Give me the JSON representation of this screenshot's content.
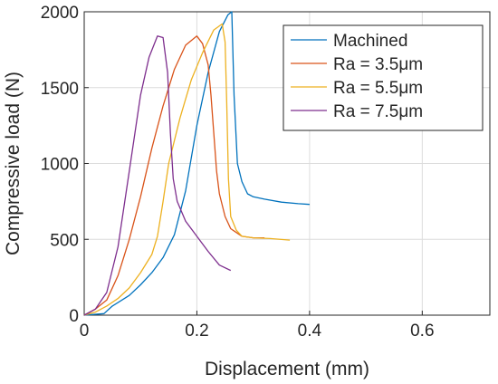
{
  "chart_data": {
    "type": "line",
    "xlabel": "Displacement (mm)",
    "ylabel": "Compressive load (N)",
    "xlim": [
      0,
      0.72
    ],
    "ylim": [
      0,
      2000
    ],
    "xticks": [
      "0",
      "0.2",
      "0.4",
      "0.6"
    ],
    "xtick_values": [
      0,
      0.2,
      0.4,
      0.6
    ],
    "yticks": [
      "0",
      "500",
      "1000",
      "1500",
      "2000"
    ],
    "ytick_values": [
      0,
      500,
      1000,
      1500,
      2000
    ],
    "grid": true,
    "legend_position": "top-right",
    "series": [
      {
        "name": "Machined",
        "color": "#0072BD",
        "points": [
          [
            0,
            0
          ],
          [
            0.035,
            10
          ],
          [
            0.05,
            60
          ],
          [
            0.08,
            130
          ],
          [
            0.1,
            200
          ],
          [
            0.12,
            280
          ],
          [
            0.14,
            380
          ],
          [
            0.16,
            530
          ],
          [
            0.18,
            820
          ],
          [
            0.2,
            1250
          ],
          [
            0.22,
            1600
          ],
          [
            0.24,
            1870
          ],
          [
            0.255,
            1980
          ],
          [
            0.262,
            2000
          ],
          [
            0.266,
            1450
          ],
          [
            0.272,
            1000
          ],
          [
            0.28,
            880
          ],
          [
            0.29,
            800
          ],
          [
            0.3,
            780
          ],
          [
            0.32,
            765
          ],
          [
            0.35,
            745
          ],
          [
            0.38,
            735
          ],
          [
            0.4,
            730
          ]
        ]
      },
      {
        "name": "Ra = 3.5μm",
        "color": "#D95319",
        "points": [
          [
            0,
            0
          ],
          [
            0.02,
            40
          ],
          [
            0.04,
            100
          ],
          [
            0.06,
            260
          ],
          [
            0.08,
            500
          ],
          [
            0.1,
            780
          ],
          [
            0.12,
            1100
          ],
          [
            0.14,
            1380
          ],
          [
            0.16,
            1620
          ],
          [
            0.18,
            1780
          ],
          [
            0.2,
            1840
          ],
          [
            0.21,
            1790
          ],
          [
            0.22,
            1650
          ],
          [
            0.225,
            1450
          ],
          [
            0.23,
            1200
          ],
          [
            0.235,
            950
          ],
          [
            0.24,
            800
          ],
          [
            0.25,
            650
          ],
          [
            0.26,
            570
          ],
          [
            0.28,
            520
          ],
          [
            0.3,
            510
          ],
          [
            0.32,
            510
          ]
        ]
      },
      {
        "name": "Ra = 5.5μm",
        "color": "#EDB120",
        "points": [
          [
            0,
            0
          ],
          [
            0.02,
            20
          ],
          [
            0.04,
            60
          ],
          [
            0.06,
            110
          ],
          [
            0.08,
            180
          ],
          [
            0.1,
            280
          ],
          [
            0.12,
            400
          ],
          [
            0.13,
            520
          ],
          [
            0.14,
            750
          ],
          [
            0.15,
            1000
          ],
          [
            0.17,
            1300
          ],
          [
            0.19,
            1550
          ],
          [
            0.21,
            1730
          ],
          [
            0.23,
            1880
          ],
          [
            0.245,
            1920
          ],
          [
            0.25,
            1800
          ],
          [
            0.253,
            1400
          ],
          [
            0.256,
            900
          ],
          [
            0.26,
            650
          ],
          [
            0.27,
            560
          ],
          [
            0.28,
            520
          ],
          [
            0.3,
            510
          ],
          [
            0.33,
            505
          ],
          [
            0.365,
            495
          ]
        ]
      },
      {
        "name": "Ra = 7.5μm",
        "color": "#7E2F8E",
        "points": [
          [
            0,
            0
          ],
          [
            0.02,
            40
          ],
          [
            0.04,
            150
          ],
          [
            0.06,
            450
          ],
          [
            0.08,
            950
          ],
          [
            0.1,
            1450
          ],
          [
            0.115,
            1700
          ],
          [
            0.13,
            1840
          ],
          [
            0.14,
            1830
          ],
          [
            0.148,
            1600
          ],
          [
            0.153,
            1200
          ],
          [
            0.158,
            900
          ],
          [
            0.165,
            750
          ],
          [
            0.18,
            620
          ],
          [
            0.2,
            520
          ],
          [
            0.22,
            420
          ],
          [
            0.24,
            330
          ],
          [
            0.26,
            295
          ]
        ]
      }
    ]
  }
}
